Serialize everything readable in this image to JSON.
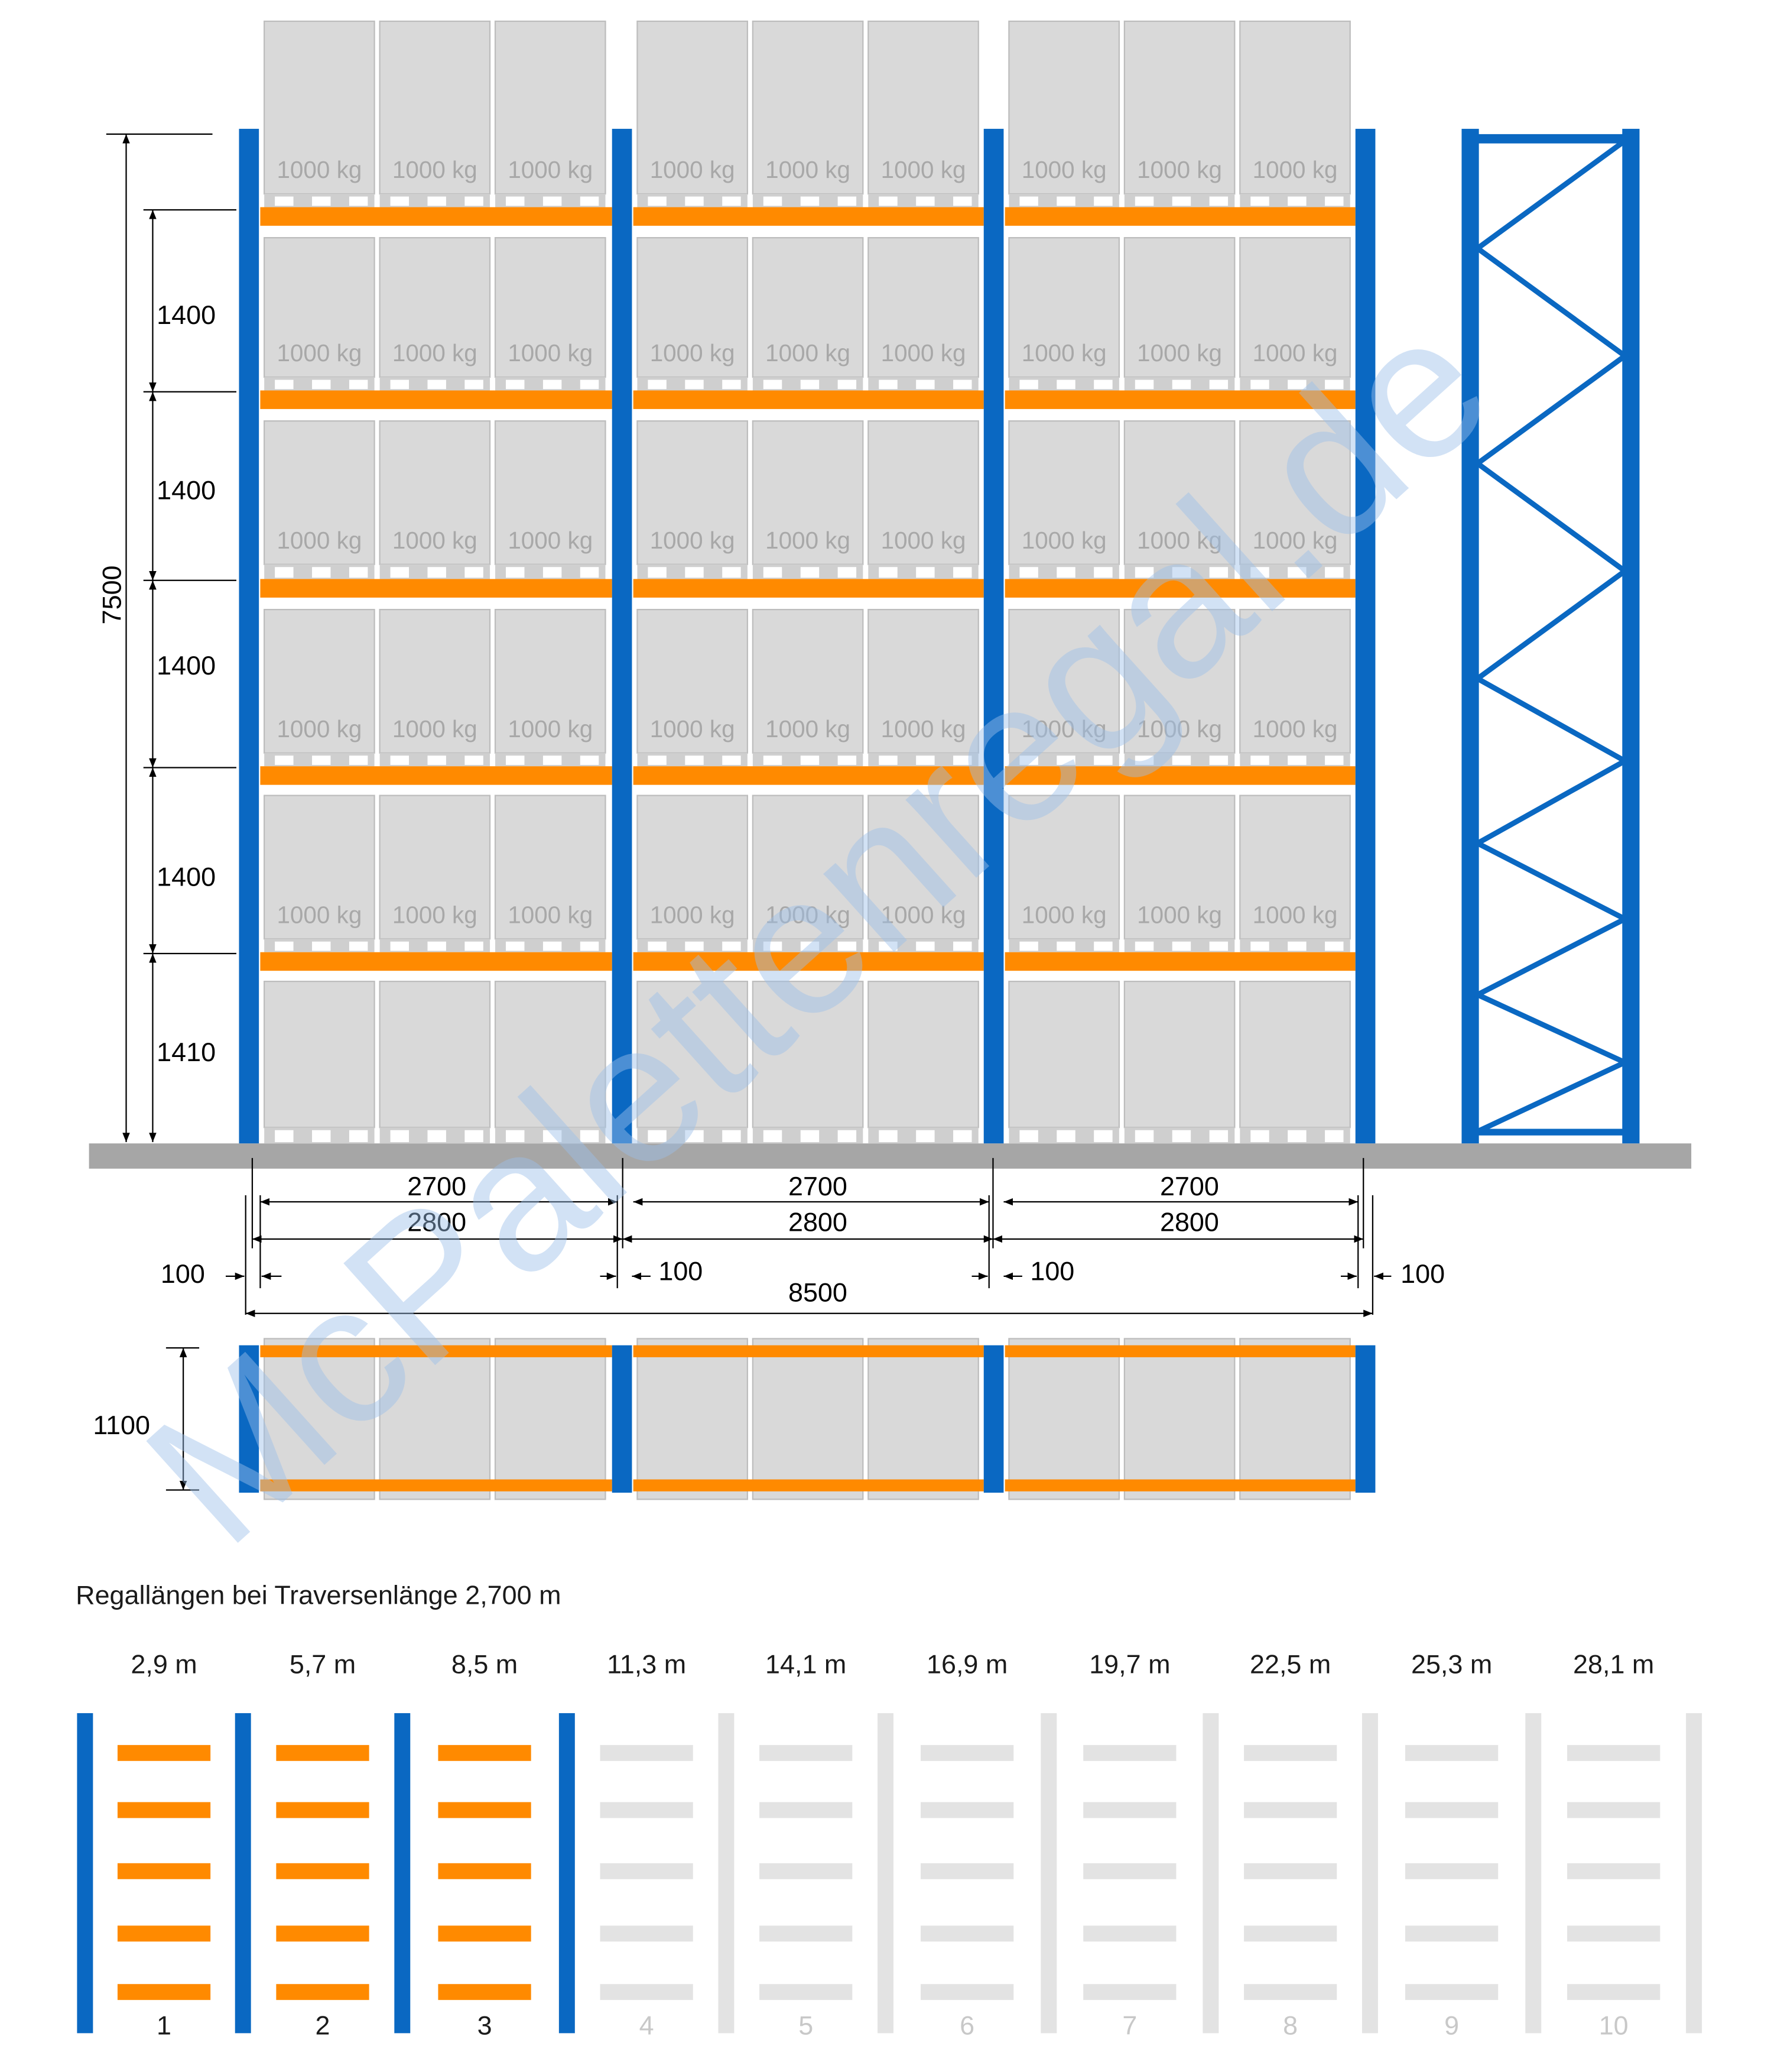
{
  "colors": {
    "upright": "#0a68c2",
    "beam": "#ff8a00",
    "pallet": "#d9d9d9",
    "pallet_stroke": "#bdbdbd",
    "pallet_base": "#cfcfcf",
    "floor": "#a6a6a6",
    "inactive": "#e3e3e3",
    "dim_line": "#000000",
    "load_text": "#a8a8a8",
    "watermark": "#9cc0ea"
  },
  "rack": {
    "load_label": "1000 kg",
    "bays": 3,
    "pallets_per_bay": 3,
    "loaded_levels": 5
  },
  "dimensions": {
    "total_height": "7500",
    "level_heights": [
      "1400",
      "1400",
      "1400",
      "1400",
      "1410"
    ],
    "beam_inner": "2700",
    "bay_width": "2800",
    "upright_width": "100",
    "total_length": "8500",
    "depth": "1100"
  },
  "watermark": "McPalettenregal.de",
  "lengths": {
    "caption": "Regallängen bei Traversenlänge 2,700 m",
    "items": [
      {
        "value": "2,9 m",
        "number": "1",
        "active": true
      },
      {
        "value": "5,7 m",
        "number": "2",
        "active": true
      },
      {
        "value": "8,5 m",
        "number": "3",
        "active": true
      },
      {
        "value": "11,3 m",
        "number": "4",
        "active": false
      },
      {
        "value": "14,1 m",
        "number": "5",
        "active": false
      },
      {
        "value": "16,9 m",
        "number": "6",
        "active": false
      },
      {
        "value": "19,7 m",
        "number": "7",
        "active": false
      },
      {
        "value": "22,5 m",
        "number": "8",
        "active": false
      },
      {
        "value": "25,3 m",
        "number": "9",
        "active": false
      },
      {
        "value": "28,1 m",
        "number": "10",
        "active": false
      }
    ]
  }
}
